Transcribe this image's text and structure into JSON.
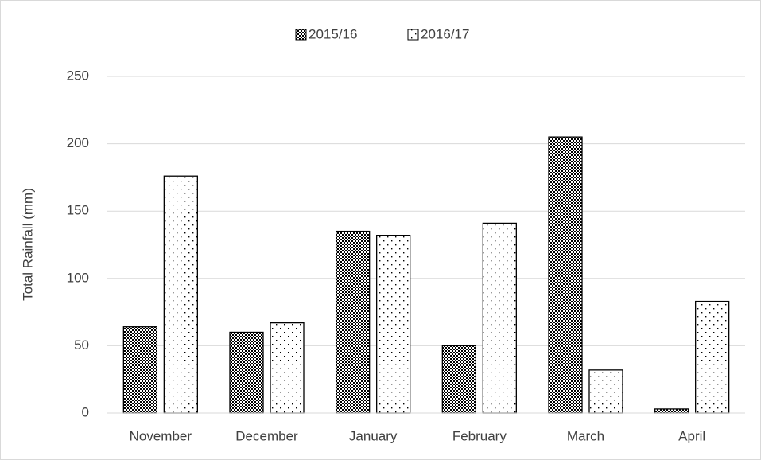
{
  "chart_data": {
    "type": "bar",
    "y_label": "Total Rainfall (mm)",
    "categories": [
      "November",
      "December",
      "January",
      "February",
      "March",
      "April"
    ],
    "series": [
      {
        "name": "2015/16",
        "color": "#000000",
        "pattern": "checker",
        "values": [
          64,
          60,
          135,
          50,
          205,
          3
        ]
      },
      {
        "name": "2016/17",
        "color": "#000000",
        "pattern": "dots",
        "values": [
          176,
          67,
          132,
          141,
          32,
          83
        ]
      }
    ],
    "ylim": [
      0,
      250
    ],
    "yticks": [
      0,
      50,
      100,
      150,
      200,
      250
    ],
    "grid": true,
    "legend": "top"
  }
}
